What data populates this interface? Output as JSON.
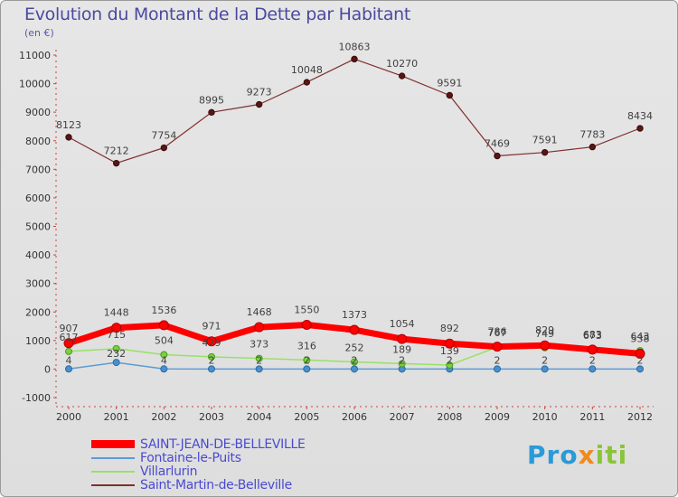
{
  "title": "Evolution du Montant de la Dette par Habitant",
  "subtitle": "(en €)",
  "logo": {
    "part1": "Pro",
    "part2": "x",
    "part3": "iti"
  },
  "colors": {
    "saint_jean": "#ff0000",
    "fontaine": "#5b9bd5",
    "villarlurin": "#99e065",
    "saint_martin": "#7f2f2f",
    "axis_text": "#333333",
    "grid": "#c0c0c0"
  },
  "chart_data": {
    "type": "line",
    "title": "Evolution du Montant de la Dette par Habitant",
    "ylabel": "(en €)",
    "xlabel": "",
    "ylim": [
      -1000,
      11000
    ],
    "yticks": [
      -1000,
      0,
      1000,
      2000,
      3000,
      4000,
      5000,
      6000,
      7000,
      8000,
      9000,
      10000,
      11000
    ],
    "categories": [
      "2000",
      "2001",
      "2002",
      "2003",
      "2004",
      "2005",
      "2006",
      "2007",
      "2008",
      "2009",
      "2010",
      "2011",
      "2012"
    ],
    "series": [
      {
        "name": "SAINT-JEAN-DE-BELLEVILLE",
        "key": "saint_jean",
        "values": [
          907,
          1448,
          1536,
          971,
          1468,
          1550,
          1373,
          1054,
          892,
          786,
          829,
          683,
          538
        ]
      },
      {
        "name": "Fontaine-le-Puits",
        "key": "fontaine",
        "values": [
          4,
          232,
          4,
          2,
          2,
          2,
          2,
          2,
          2,
          2,
          2,
          2,
          2
        ]
      },
      {
        "name": "Villarlurin",
        "key": "villarlurin",
        "values": [
          617,
          715,
          504,
          429,
          373,
          316,
          252,
          189,
          139,
          767,
          749,
          673,
          643
        ]
      },
      {
        "name": "Saint-Martin-de-Belleville",
        "key": "saint_martin",
        "values": [
          8123,
          7212,
          7754,
          8995,
          9273,
          10048,
          10863,
          10270,
          9591,
          7469,
          7591,
          7783,
          8434
        ]
      }
    ],
    "legend": "bottom-left",
    "grid": false
  }
}
